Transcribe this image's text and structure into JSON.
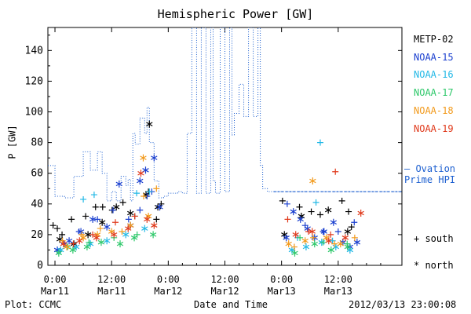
{
  "chart_data": {
    "type": "scatter",
    "title": "Hemispheric Power [GW]",
    "ylabel": "P [GW]",
    "xlabel": "Date and Time",
    "ylim": [
      0,
      155
    ],
    "yticks": [
      0,
      20,
      40,
      60,
      80,
      100,
      120,
      140
    ],
    "x_unit": "hours since 2012-03-11 00:00 UT",
    "xlim": [
      -1.5,
      73.5
    ],
    "xticks": [
      {
        "x": 0,
        "time": "0:00",
        "date": "Mar11"
      },
      {
        "x": 12,
        "time": "12:00",
        "date": "Mar11"
      },
      {
        "x": 24,
        "time": "0:00",
        "date": "Mar12"
      },
      {
        "x": 36,
        "time": "12:00",
        "date": "Mar12"
      },
      {
        "x": 48,
        "time": "0:00",
        "date": "Mar13"
      },
      {
        "x": 60,
        "time": "12:00",
        "date": "Mar13"
      }
    ],
    "legend": {
      "satellites": [
        {
          "name": "METP-02",
          "color": "#000000"
        },
        {
          "name": "NOAA-15",
          "color": "#1a3fcf"
        },
        {
          "name": "NOAA-16",
          "color": "#22b8e6"
        },
        {
          "name": "NOAA-17",
          "color": "#2ec86a"
        },
        {
          "name": "NOAA-18",
          "color": "#f29a1c"
        },
        {
          "name": "NOAA-19",
          "color": "#e03a1c"
        }
      ],
      "symbols": [
        {
          "symbol": "+",
          "label": "south"
        },
        {
          "symbol": "*",
          "label": "north"
        }
      ]
    },
    "ovation": {
      "label_line1": "Ovation",
      "label_line2": "Prime HPI",
      "color": "#1c5fd0",
      "step_x": [
        -1.5,
        0,
        2,
        4,
        6,
        7.5,
        9,
        10,
        11,
        12,
        13,
        14,
        15,
        15.5,
        16,
        16.5,
        17,
        18,
        19,
        19.5,
        20,
        21,
        22,
        23,
        24,
        25,
        26,
        27,
        28,
        29,
        30,
        31,
        32,
        33,
        33.5,
        34,
        35,
        36,
        37,
        37.5,
        38,
        39,
        40,
        41,
        42,
        43,
        43.5,
        44,
        45,
        46,
        46.3,
        73.5
      ],
      "step_y": [
        65,
        45,
        44,
        58,
        74,
        62,
        74,
        60,
        42,
        48,
        42,
        58,
        52,
        56,
        42,
        86,
        79,
        96,
        86,
        103,
        80,
        55,
        44,
        45,
        47,
        47,
        48,
        47,
        86,
        155,
        47,
        155,
        47,
        155,
        55,
        47,
        155,
        48,
        155,
        85,
        99,
        118,
        97,
        155,
        97,
        155,
        65,
        50,
        48,
        48,
        48,
        48
      ],
      "dashed_level": 48,
      "dashed_from_x": 46.3
    },
    "series": [
      {
        "name": "METP-02 south",
        "color": "#000000",
        "marker": "+",
        "x": [
          -0.4,
          0.5,
          1.5,
          3.5,
          6.5,
          8.6,
          10.1,
          12.1,
          14.4,
          16.9,
          19.8,
          21.5,
          22.5,
          48.2,
          51.8,
          54.3,
          56.2,
          60.8,
          62.2,
          62.8
        ],
        "y": [
          26,
          24,
          20,
          30,
          32,
          38,
          38,
          36,
          41,
          32,
          48,
          30,
          40,
          42,
          38,
          35,
          33,
          42,
          35,
          25
        ]
      },
      {
        "name": "METP-02 north",
        "color": "#000000",
        "marker": "*",
        "x": [
          1.0,
          4.0,
          7.0,
          10.0,
          13.0,
          16.0,
          19.3,
          20.0,
          21.8,
          48.6,
          52.2,
          57.9,
          62.0
        ],
        "y": [
          17,
          14,
          20,
          28,
          38,
          34,
          46,
          92,
          38,
          20,
          32,
          36,
          22
        ]
      },
      {
        "name": "NOAA-15 south",
        "color": "#1a3fcf",
        "marker": "+",
        "x": [
          2.0,
          5.1,
          9.0,
          12.3,
          15.6,
          18.0,
          19.5,
          20.5,
          49.2,
          53.0,
          56.8,
          60.0,
          63.4
        ],
        "y": [
          14,
          22,
          30,
          36,
          30,
          36,
          45,
          48,
          40,
          26,
          22,
          22,
          28
        ]
      },
      {
        "name": "NOAA-15 north",
        "color": "#1a3fcf",
        "marker": "*",
        "x": [
          0.5,
          3.0,
          5.5,
          8.0,
          11.0,
          13.6,
          16.0,
          18.0,
          19.2,
          21.0,
          22.2,
          49.0,
          50.5,
          52.0,
          53.5,
          55.0,
          57.0,
          59.0,
          61.0,
          62.5,
          64.0
        ],
        "y": [
          10,
          16,
          22,
          30,
          25,
          53,
          26,
          55,
          62,
          70,
          38,
          18,
          35,
          30,
          24,
          18,
          22,
          28,
          15,
          12,
          15
        ]
      },
      {
        "name": "NOAA-16 south",
        "color": "#22b8e6",
        "marker": "+",
        "x": [
          6.0,
          8.3,
          17.3,
          20.0,
          51.4,
          55.3,
          56.2,
          58.8
        ],
        "y": [
          43,
          46,
          47,
          48,
          18,
          41,
          80,
          16
        ]
      },
      {
        "name": "NOAA-16 north",
        "color": "#22b8e6",
        "marker": "*",
        "x": [
          1.2,
          4.5,
          7.5,
          11.0,
          15.0,
          19.0,
          50.2,
          53.2,
          56.5,
          59.5,
          62.5
        ],
        "y": [
          10,
          12,
          14,
          16,
          20,
          24,
          10,
          12,
          15,
          12,
          10
        ]
      },
      {
        "name": "NOAA-17 south",
        "color": "#2ec86a",
        "marker": "+",
        "x": [
          2.7,
          7.2,
          12.5,
          17.4,
          51.9,
          56.8,
          61.9
        ],
        "y": [
          12,
          15,
          18,
          20,
          18,
          15,
          14
        ]
      },
      {
        "name": "NOAA-17 north",
        "color": "#2ec86a",
        "marker": "*",
        "x": [
          0.8,
          3.8,
          6.8,
          9.8,
          13.8,
          16.8,
          20.8,
          50.8,
          55.0,
          58.5,
          62.0
        ],
        "y": [
          8,
          10,
          12,
          15,
          14,
          18,
          20,
          8,
          14,
          10,
          12
        ]
      },
      {
        "name": "NOAA-18 south",
        "color": "#f29a1c",
        "marker": "+",
        "x": [
          1.6,
          5.7,
          9.6,
          14.2,
          18.8,
          21.5,
          50.7,
          54.7,
          59.2,
          63.5
        ],
        "y": [
          16,
          20,
          24,
          22,
          45,
          50,
          12,
          18,
          14,
          18
        ]
      },
      {
        "name": "NOAA-18 north",
        "color": "#f29a1c",
        "marker": "*",
        "x": [
          2.5,
          6.0,
          9.0,
          12.0,
          16.0,
          18.7,
          19.8,
          49.5,
          53.0,
          54.6,
          57.5,
          60.5
        ],
        "y": [
          12,
          18,
          20,
          22,
          26,
          70,
          32,
          14,
          16,
          55,
          18,
          14
        ]
      },
      {
        "name": "NOAA-19 south",
        "color": "#e03a1c",
        "marker": "+",
        "x": [
          3.9,
          8.0,
          12.8,
          16.9,
          49.3,
          53.7,
          58.4,
          59.4
        ],
        "y": [
          14,
          20,
          28,
          32,
          30,
          22,
          20,
          61
        ]
      },
      {
        "name": "NOAA-19 north",
        "color": "#e03a1c",
        "marker": "*",
        "x": [
          1.8,
          5.2,
          8.8,
          12.5,
          15.5,
          18.2,
          19.5,
          21.0,
          51.0,
          54.5,
          58.0,
          61.5,
          64.8
        ],
        "y": [
          14,
          16,
          18,
          20,
          24,
          60,
          30,
          26,
          20,
          22,
          16,
          18,
          34
        ]
      }
    ]
  },
  "footer": {
    "left": "Plot: CCMC",
    "right": "2012/03/13 23:00:08"
  }
}
